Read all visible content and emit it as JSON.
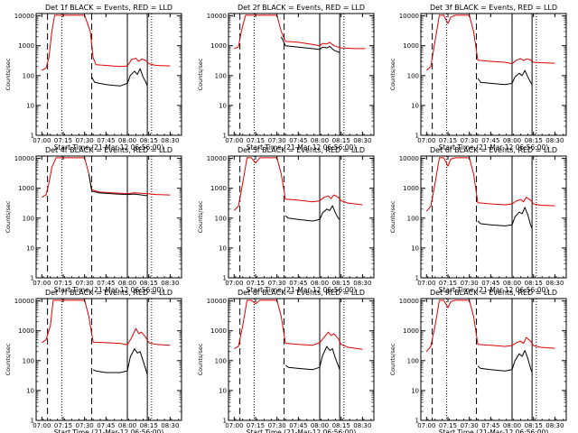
{
  "figure": {
    "ylabel": "Counts/sec",
    "xlabel": "Start Time (21-Mar-12 06:56:00)",
    "x_ticks": [
      "07:00",
      "07:15",
      "07:30",
      "07:45",
      "08:00",
      "08:15",
      "08:30"
    ],
    "y_ticks": [
      "1",
      "10",
      "100",
      "1000",
      "10000"
    ],
    "colors": {
      "events": "#000000",
      "lld": "#e00000"
    }
  },
  "chart_data": [
    {
      "type": "line",
      "title": "Det 1f BLACK = Events, RED = LLD",
      "xlabel": "Start Time (21-Mar-12 06:56:00)",
      "ylabel": "Counts/sec",
      "xlim": [
        -4,
        98
      ],
      "ylim": [
        1,
        12000
      ],
      "dashed_lines": [
        4,
        35
      ],
      "dotted_lines": [
        14,
        77
      ],
      "solid_lines": [
        60,
        74
      ],
      "series": [
        {
          "name": "LLD",
          "color": "#e00000",
          "x": [
            0,
            3,
            5,
            7,
            9,
            12,
            20,
            30,
            34,
            36,
            38,
            45,
            55,
            60,
            63,
            66,
            68,
            70,
            73,
            75,
            80,
            90
          ],
          "y": [
            150,
            180,
            400,
            3000,
            10500,
            10500,
            10500,
            10500,
            3000,
            400,
            230,
            220,
            200,
            210,
            350,
            380,
            300,
            360,
            320,
            250,
            220,
            210
          ]
        },
        {
          "name": "Events",
          "color": "#000000",
          "x": [
            35,
            37,
            45,
            55,
            60,
            62,
            65,
            67,
            69,
            71,
            73,
            74
          ],
          "y": [
            90,
            60,
            50,
            45,
            55,
            100,
            140,
            110,
            170,
            90,
            60,
            45
          ]
        }
      ]
    },
    {
      "type": "line",
      "title": "Det 2f BLACK = Events, RED = LLD",
      "xlabel": "Start Time (21-Mar-12 06:56:00)",
      "ylabel": "Counts/sec",
      "xlim": [
        -4,
        98
      ],
      "ylim": [
        1,
        12000
      ],
      "dashed_lines": [
        4,
        35
      ],
      "dotted_lines": [
        14,
        77
      ],
      "solid_lines": [
        60,
        74
      ],
      "series": [
        {
          "name": "LLD",
          "color": "#e00000",
          "x": [
            0,
            3,
            5,
            8,
            12,
            20,
            30,
            33,
            36,
            45,
            55,
            60,
            62,
            65,
            67,
            70,
            75,
            85,
            92
          ],
          "y": [
            800,
            900,
            3000,
            10500,
            10500,
            10500,
            10500,
            3000,
            1400,
            1300,
            1100,
            1000,
            1200,
            1150,
            1300,
            1000,
            850,
            800,
            800
          ]
        },
        {
          "name": "Events",
          "color": "#000000",
          "x": [
            33,
            36,
            45,
            55,
            60,
            62,
            65,
            67,
            70,
            74
          ],
          "y": [
            2000,
            1000,
            900,
            800,
            750,
            900,
            850,
            950,
            700,
            600
          ]
        }
      ]
    },
    {
      "type": "line",
      "title": "Det 3f BLACK = Events, RED = LLD",
      "xlabel": "Start Time (21-Mar-12 06:56:00)",
      "ylabel": "Counts/sec",
      "xlim": [
        -4,
        98
      ],
      "ylim": [
        1,
        12000
      ],
      "dashed_lines": [
        4,
        35
      ],
      "dotted_lines": [
        14,
        77
      ],
      "solid_lines": [
        60,
        74
      ],
      "series": [
        {
          "name": "LLD",
          "color": "#e00000",
          "x": [
            0,
            3,
            6,
            9,
            12,
            15,
            17,
            20,
            30,
            33,
            36,
            45,
            55,
            60,
            63,
            66,
            68,
            70,
            73,
            75,
            80,
            90
          ],
          "y": [
            150,
            200,
            1500,
            10500,
            10500,
            5500,
            9000,
            10500,
            10500,
            3000,
            330,
            300,
            280,
            250,
            330,
            370,
            320,
            360,
            340,
            280,
            270,
            260
          ]
        },
        {
          "name": "Events",
          "color": "#000000",
          "x": [
            36,
            38,
            45,
            55,
            60,
            62,
            65,
            67,
            69,
            71,
            73,
            74
          ],
          "y": [
            80,
            60,
            55,
            50,
            55,
            90,
            120,
            100,
            150,
            90,
            60,
            50
          ]
        }
      ]
    },
    {
      "type": "line",
      "title": "Det 4f BLACK = Events, RED = LLD",
      "xlabel": "Start Time (21-Mar-12 06:56:00)",
      "ylabel": "Counts/sec",
      "xlim": [
        -4,
        98
      ],
      "ylim": [
        1,
        12000
      ],
      "dashed_lines": [
        4,
        35
      ],
      "dotted_lines": [
        14,
        77
      ],
      "solid_lines": [
        60,
        74
      ],
      "series": [
        {
          "name": "LLD",
          "color": "#e00000",
          "x": [
            0,
            3,
            5,
            7,
            10,
            20,
            30,
            33,
            35,
            40,
            50,
            60,
            65,
            70,
            75,
            80,
            90
          ],
          "y": [
            500,
            600,
            1500,
            5000,
            10500,
            10500,
            10500,
            3000,
            900,
            750,
            700,
            660,
            700,
            680,
            650,
            620,
            600
          ]
        },
        {
          "name": "Events",
          "color": "#000000",
          "x": [
            33,
            35,
            40,
            50,
            60,
            65,
            70,
            74
          ],
          "y": [
            3000,
            800,
            700,
            650,
            620,
            640,
            600,
            560
          ]
        }
      ]
    },
    {
      "type": "line",
      "title": "Det 5f BLACK = Events, RED = LLD",
      "xlabel": "Start Time (21-Mar-12 06:56:00)",
      "ylabel": "Counts/sec",
      "xlim": [
        -4,
        98
      ],
      "ylim": [
        1,
        12000
      ],
      "dashed_lines": [
        4,
        35
      ],
      "dotted_lines": [
        14,
        77
      ],
      "solid_lines": [
        60,
        74
      ],
      "series": [
        {
          "name": "LLD",
          "color": "#e00000",
          "x": [
            0,
            3,
            6,
            9,
            12,
            15,
            18,
            30,
            33,
            36,
            45,
            55,
            60,
            63,
            66,
            68,
            70,
            73,
            75,
            80,
            90
          ],
          "y": [
            180,
            250,
            1500,
            10500,
            10500,
            7000,
            10500,
            10500,
            3000,
            430,
            400,
            350,
            380,
            500,
            550,
            450,
            600,
            500,
            380,
            320,
            280
          ]
        },
        {
          "name": "Events",
          "color": "#000000",
          "x": [
            36,
            38,
            45,
            55,
            60,
            62,
            65,
            67,
            69,
            71,
            73,
            74
          ],
          "y": [
            120,
            100,
            90,
            80,
            90,
            150,
            200,
            180,
            260,
            150,
            100,
            90
          ]
        }
      ]
    },
    {
      "type": "line",
      "title": "Det 6f BLACK = Events, RED = LLD",
      "xlabel": "Start Time (21-Mar-12 06:56:00)",
      "ylabel": "Counts/sec",
      "xlim": [
        -4,
        98
      ],
      "ylim": [
        1,
        12000
      ],
      "dashed_lines": [
        4,
        35
      ],
      "dotted_lines": [
        14,
        77
      ],
      "solid_lines": [
        60,
        74
      ],
      "series": [
        {
          "name": "LLD",
          "color": "#e00000",
          "x": [
            0,
            3,
            6,
            9,
            12,
            15,
            17,
            20,
            30,
            33,
            36,
            45,
            55,
            60,
            63,
            66,
            68,
            70,
            73,
            75,
            80,
            90
          ],
          "y": [
            170,
            250,
            1500,
            10500,
            10500,
            5500,
            9500,
            10500,
            10500,
            3000,
            330,
            300,
            280,
            300,
            380,
            420,
            350,
            500,
            400,
            300,
            270,
            260
          ]
        },
        {
          "name": "Events",
          "color": "#000000",
          "x": [
            36,
            38,
            45,
            55,
            60,
            62,
            65,
            67,
            69,
            71,
            73,
            74
          ],
          "y": [
            80,
            65,
            60,
            55,
            60,
            110,
            160,
            140,
            230,
            130,
            60,
            45
          ]
        }
      ]
    },
    {
      "type": "line",
      "title": "Det 7f BLACK = Events, RED = LLD",
      "xlabel": "Start Time (21-Mar-12 06:56:00)",
      "ylabel": "Counts/sec",
      "xlim": [
        -4,
        98
      ],
      "ylim": [
        1,
        12000
      ],
      "dashed_lines": [
        4,
        35
      ],
      "dotted_lines": [
        14,
        77
      ],
      "solid_lines": [
        60,
        74
      ],
      "series": [
        {
          "name": "LLD",
          "color": "#e00000",
          "x": [
            0,
            3,
            6,
            8,
            12,
            20,
            30,
            33,
            36,
            45,
            55,
            60,
            63,
            66,
            68,
            70,
            73,
            75,
            80,
            90
          ],
          "y": [
            400,
            500,
            1500,
            10500,
            10500,
            10500,
            10500,
            3000,
            420,
            400,
            380,
            340,
            600,
            1200,
            800,
            900,
            600,
            400,
            350,
            330
          ]
        },
        {
          "name": "Events",
          "color": "#000000",
          "x": [
            36,
            38,
            45,
            55,
            60,
            62,
            65,
            67,
            69,
            71,
            73,
            74
          ],
          "y": [
            50,
            45,
            40,
            40,
            45,
            130,
            250,
            180,
            200,
            100,
            50,
            35
          ]
        }
      ]
    },
    {
      "type": "line",
      "title": "Det 8f BLACK = Events, RED = LLD",
      "xlabel": "Start Time (21-Mar-12 06:56:00)",
      "ylabel": "Counts/sec",
      "xlim": [
        -4,
        98
      ],
      "ylim": [
        1,
        12000
      ],
      "dashed_lines": [
        4,
        35
      ],
      "dotted_lines": [
        14,
        77
      ],
      "solid_lines": [
        60,
        74
      ],
      "series": [
        {
          "name": "LLD",
          "color": "#e00000",
          "x": [
            0,
            3,
            6,
            9,
            12,
            15,
            18,
            30,
            33,
            36,
            45,
            55,
            60,
            63,
            66,
            68,
            70,
            73,
            75,
            80,
            90
          ],
          "y": [
            250,
            300,
            1500,
            10500,
            10500,
            8000,
            10500,
            10500,
            3000,
            380,
            350,
            330,
            400,
            600,
            900,
            700,
            800,
            550,
            350,
            280,
            240
          ]
        },
        {
          "name": "Events",
          "color": "#000000",
          "x": [
            36,
            38,
            45,
            55,
            60,
            62,
            65,
            67,
            69,
            71,
            73,
            74
          ],
          "y": [
            70,
            60,
            55,
            50,
            60,
            150,
            300,
            220,
            250,
            120,
            70,
            50
          ]
        }
      ]
    },
    {
      "type": "line",
      "title": "Det 9f BLACK = Events, RED = LLD",
      "xlabel": "Start Time (21-Mar-12 06:56:00)",
      "ylabel": "Counts/sec",
      "xlim": [
        -4,
        98
      ],
      "ylim": [
        1,
        12000
      ],
      "dashed_lines": [
        4,
        35
      ],
      "dotted_lines": [
        14,
        77
      ],
      "solid_lines": [
        60,
        74
      ],
      "series": [
        {
          "name": "LLD",
          "color": "#e00000",
          "x": [
            0,
            3,
            6,
            9,
            12,
            15,
            17,
            20,
            30,
            33,
            36,
            45,
            55,
            60,
            63,
            66,
            68,
            70,
            73,
            75,
            80,
            90
          ],
          "y": [
            200,
            300,
            1500,
            10500,
            10500,
            6000,
            9500,
            10500,
            10500,
            3000,
            350,
            330,
            300,
            320,
            400,
            450,
            380,
            600,
            450,
            320,
            280,
            260
          ]
        },
        {
          "name": "Events",
          "color": "#000000",
          "x": [
            36,
            38,
            45,
            55,
            60,
            62,
            65,
            67,
            69,
            71,
            73,
            74
          ],
          "y": [
            65,
            55,
            50,
            45,
            50,
            100,
            170,
            140,
            220,
            120,
            55,
            40
          ]
        }
      ]
    }
  ]
}
